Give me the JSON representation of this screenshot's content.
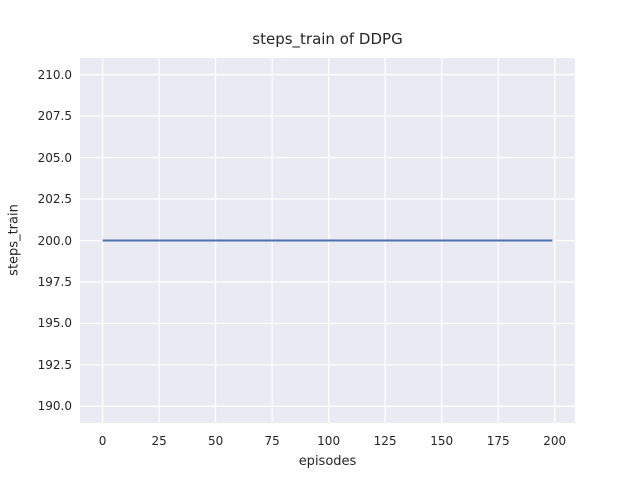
{
  "chart_data": {
    "type": "line",
    "title": "steps_train of DDPG",
    "xlabel": "episodes",
    "ylabel": "steps_train",
    "xlim": [
      -10,
      209
    ],
    "ylim": [
      189,
      211
    ],
    "xticks": {
      "values": [
        0,
        25,
        50,
        75,
        100,
        125,
        150,
        175,
        200
      ],
      "labels": [
        "0",
        "25",
        "50",
        "75",
        "100",
        "125",
        "150",
        "175",
        "200"
      ]
    },
    "yticks": {
      "values": [
        190,
        192.5,
        195,
        197.5,
        200,
        202.5,
        205,
        207.5,
        210
      ],
      "labels": [
        "190.0",
        "192.5",
        "195.0",
        "197.5",
        "200.0",
        "202.5",
        "205.0",
        "207.5",
        "210.0"
      ]
    },
    "grid": true,
    "legend": null,
    "series": [
      {
        "name": "steps_train",
        "color": "#4c72b0",
        "x": [
          0,
          199
        ],
        "y": [
          200,
          200
        ]
      }
    ],
    "colors": {
      "figure_background": "#ffffff",
      "plot_background": "#eaeaf2",
      "gridline": "#ffffff",
      "tick_text": "#262626",
      "line": "#4c72b0"
    }
  }
}
